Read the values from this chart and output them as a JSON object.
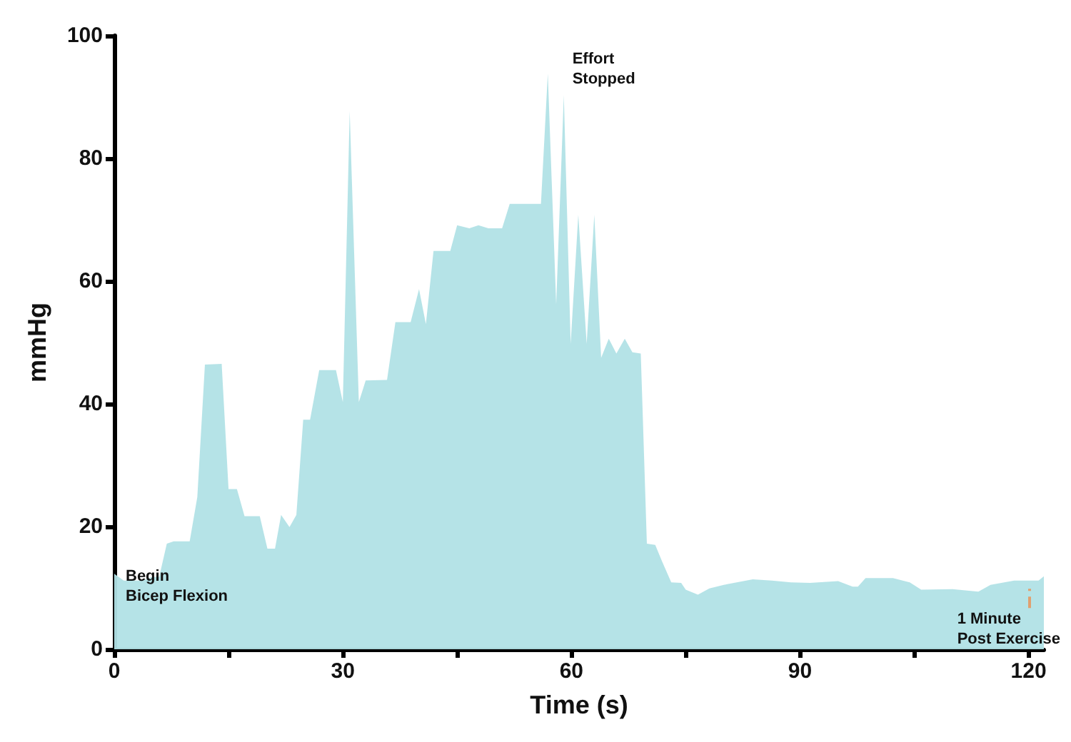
{
  "chart_data": {
    "type": "area",
    "xlabel": "Time (s)",
    "ylabel": "mmHg",
    "x": [
      0,
      1.25,
      3.75,
      5,
      5.9,
      6.9,
      7.8,
      9.9,
      10.9,
      11.9,
      14.1,
      15,
      16.1,
      17.1,
      19.1,
      20.1,
      21.1,
      21.9,
      23,
      23.9,
      24.8,
      25.7,
      26.9,
      29.1,
      30,
      30.9,
      32.1,
      33,
      35.8,
      36.9,
      38.9,
      40,
      40.9,
      41.9,
      44.1,
      45,
      46.6,
      47.8,
      49.1,
      50.9,
      51.9,
      56,
      56.9,
      58,
      59,
      59.9,
      60.9,
      62,
      63,
      63.9,
      64.9,
      65.9,
      67,
      68,
      69.1,
      69.9,
      71,
      71.9,
      73.1,
      74.4,
      75,
      76.6,
      78.1,
      80,
      83.8,
      86.3,
      88.8,
      91.3,
      95,
      96.9,
      97.6,
      98.6,
      102.2,
      104.4,
      105.9,
      110,
      113.4,
      115,
      118.1,
      121.3,
      122
    ],
    "series": [
      {
        "color": "#b1e2e6",
        "values": [
          12.3,
          11.2,
          11.2,
          11.8,
          11.8,
          17.2,
          17.6,
          17.6,
          24.8,
          46.4,
          46.5,
          26.1,
          26.1,
          21.7,
          21.7,
          16.4,
          16.4,
          21.9,
          19.9,
          21.9,
          37.4,
          37.4,
          45.5,
          45.5,
          40.3,
          87.7,
          40.3,
          43.8,
          43.9,
          53.3,
          53.3,
          58.7,
          53,
          64.9,
          64.9,
          69.1,
          68.6,
          69.1,
          68.6,
          68.6,
          72.6,
          72.6,
          93.8,
          56.2,
          90.3,
          49.8,
          70.8,
          49.8,
          70.8,
          47.5,
          50.6,
          48.2,
          50.6,
          48.4,
          48.2,
          17.2,
          17,
          14.3,
          10.9,
          10.8,
          9.7,
          8.9,
          9.9,
          10.5,
          11.4,
          11.2,
          10.9,
          10.8,
          11.1,
          10.2,
          10.2,
          11.6,
          11.6,
          10.9,
          9.7,
          9.8,
          9.4,
          10.5,
          11.2,
          11.2,
          11.9
        ]
      }
    ],
    "xlim": [
      0,
      122
    ],
    "xticks": [
      0,
      {
        "value": 15,
        "label": null
      },
      30,
      {
        "value": 45,
        "label": null
      },
      60,
      {
        "value": 75,
        "label": null
      },
      90,
      {
        "value": 105,
        "label": null
      },
      120
    ],
    "ylim": [
      0,
      100
    ],
    "yticks": [
      0,
      20,
      40,
      60,
      80,
      100
    ],
    "grid": false,
    "marker": "none",
    "annotations": [
      {
        "text": "Begin\nBicep Flexion",
        "x": 0,
        "y": 12.3
      },
      {
        "text": "Effort\nStopped",
        "x": 59,
        "y": 90.3
      },
      {
        "text": "1 Minute\nPost Exercise",
        "x": 120,
        "y": 11.2
      }
    ]
  }
}
